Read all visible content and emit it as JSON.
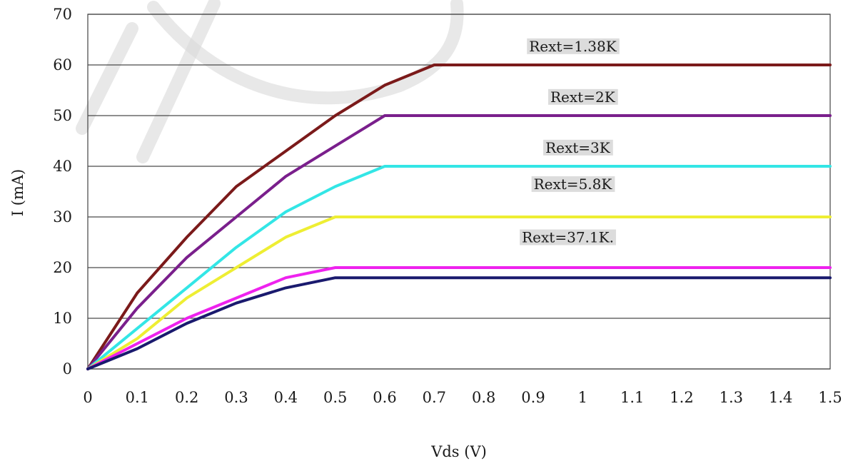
{
  "chart_data": {
    "type": "line",
    "xlabel": "Vds (V)",
    "ylabel": "I (mA)",
    "xlim": [
      0,
      1.5
    ],
    "ylim": [
      0,
      70
    ],
    "x_ticks": [
      "0",
      "0.1",
      "0.2",
      "0.3",
      "0.4",
      "0.5",
      "0.6",
      "0.7",
      "0.8",
      "0.9",
      "1",
      "1.1",
      "1.2",
      "1.3",
      "1.4",
      "1.5"
    ],
    "y_ticks": [
      "0",
      "10",
      "20",
      "30",
      "40",
      "50",
      "60",
      "70"
    ],
    "grid": "horizontal",
    "legend": "none",
    "series": [
      {
        "name": "Rext=1.38K",
        "color": "#7b1a1a",
        "x": [
          0,
          0.1,
          0.2,
          0.3,
          0.4,
          0.5,
          0.6,
          0.7,
          1.5
        ],
        "y": [
          0,
          15,
          26,
          36,
          43,
          50,
          56,
          60,
          60
        ]
      },
      {
        "name": "Rext=2K",
        "color": "#7a1f8c",
        "x": [
          0,
          0.1,
          0.2,
          0.3,
          0.4,
          0.5,
          0.6,
          1.5
        ],
        "y": [
          0,
          12,
          22,
          30,
          38,
          44,
          50,
          50
        ]
      },
      {
        "name": "Rext=3K",
        "color": "#33e6e6",
        "x": [
          0,
          0.1,
          0.2,
          0.3,
          0.4,
          0.5,
          0.6,
          1.5
        ],
        "y": [
          0,
          8,
          16,
          24,
          31,
          36,
          40,
          40
        ]
      },
      {
        "name": "Rext=5.8K",
        "color": "#eeee33",
        "x": [
          0,
          0.1,
          0.2,
          0.3,
          0.4,
          0.5,
          1.5
        ],
        "y": [
          0,
          6,
          14,
          20,
          26,
          30,
          30
        ]
      },
      {
        "name": "Rext=37.1K.",
        "color": "#ee22ee",
        "x": [
          0,
          0.1,
          0.2,
          0.3,
          0.4,
          0.5,
          1.5
        ],
        "y": [
          0,
          5,
          10,
          14,
          18,
          20,
          20
        ]
      },
      {
        "name": "",
        "color": "#1a1a6e",
        "x": [
          0,
          0.1,
          0.2,
          0.3,
          0.4,
          0.5,
          1.5
        ],
        "y": [
          0,
          4,
          9,
          13,
          16,
          18,
          18
        ]
      }
    ],
    "annotations": [
      {
        "text": "Rext=1.38K",
        "x": 0.98,
        "y": 62.7
      },
      {
        "text": "Rext=2K",
        "x": 1.0,
        "y": 52.7
      },
      {
        "text": "Rext=3K",
        "x": 0.99,
        "y": 42.7
      },
      {
        "text": "Rext=5.8K",
        "x": 0.98,
        "y": 35.5
      },
      {
        "text": "Rext=37.1K.",
        "x": 0.97,
        "y": 25.0
      }
    ]
  }
}
